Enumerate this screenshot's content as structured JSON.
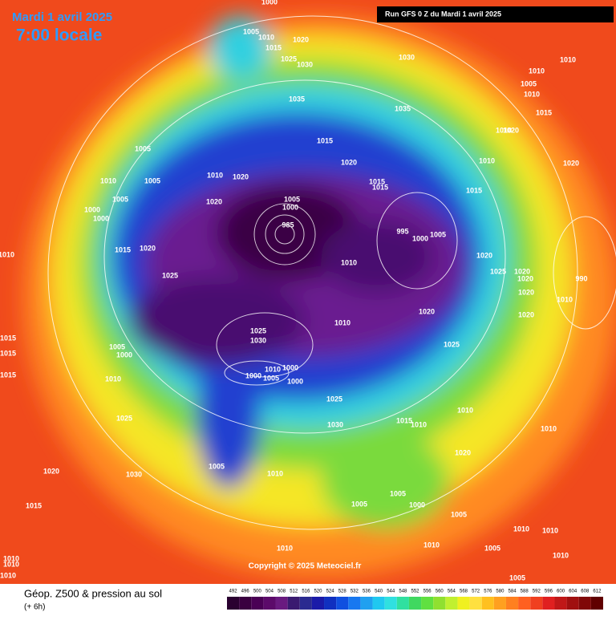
{
  "header": {
    "date": "Mardi 1 avril 2025",
    "time": "7:00 locale",
    "run": "Run GFS 0 Z du Mardi 1 avril 2025"
  },
  "copyright": "Copyright © 2025 Meteociel.fr",
  "legend": {
    "title": "Géop. Z500 & pression au sol",
    "step": "(+ 6h)",
    "scale": [
      492,
      496,
      500,
      504,
      508,
      512,
      516,
      520,
      524,
      528,
      532,
      536,
      540,
      544,
      548,
      552,
      556,
      560,
      564,
      568,
      572,
      576,
      580,
      584,
      588,
      592,
      596,
      600,
      604,
      608,
      612
    ],
    "colors": [
      "#2a0030",
      "#3a0040",
      "#4a0055",
      "#5c0a6a",
      "#6a1a80",
      "#3a1a70",
      "#2a2a90",
      "#1a1aa8",
      "#1030c0",
      "#1050e0",
      "#1878f0",
      "#20a0f0",
      "#20c8f0",
      "#30e0e0",
      "#30e0a0",
      "#40d860",
      "#60e040",
      "#90e030",
      "#c0f030",
      "#f0f020",
      "#ffe040",
      "#ffc020",
      "#ffa020",
      "#ff8020",
      "#ff6020",
      "#f04020",
      "#e02020",
      "#c01818",
      "#a01010",
      "#800808",
      "#600000"
    ]
  },
  "isobars": [
    1000,
    1005,
    1010,
    1020,
    1015,
    1025,
    1030,
    1030,
    1010,
    1010,
    1005,
    1010,
    1035,
    1035,
    1015,
    1010,
    1020,
    1005,
    1015,
    1020,
    1010,
    1020,
    1010,
    1005,
    1010,
    1020,
    1015,
    1015,
    1015,
    1005,
    1020,
    1005,
    1000,
    1000,
    1000,
    995,
    1005,
    1000,
    985,
    1010,
    1015,
    1020,
    1020,
    1010,
    1025,
    1025,
    1020,
    990,
    1020,
    1020,
    1010,
    1020,
    1020,
    1010,
    1025,
    1030,
    1025,
    1005,
    1000,
    1015,
    1015,
    1010,
    1000,
    1005,
    1000,
    1000,
    1010,
    1015,
    1025,
    1010,
    1025,
    1030,
    1015,
    1010,
    1010,
    1020,
    1005,
    1030,
    1020,
    1010,
    1005,
    1005,
    1000,
    1015,
    1005,
    1010,
    1010,
    1010,
    1010,
    1005,
    1010,
    1010,
    1010,
    1010,
    1005
  ]
}
